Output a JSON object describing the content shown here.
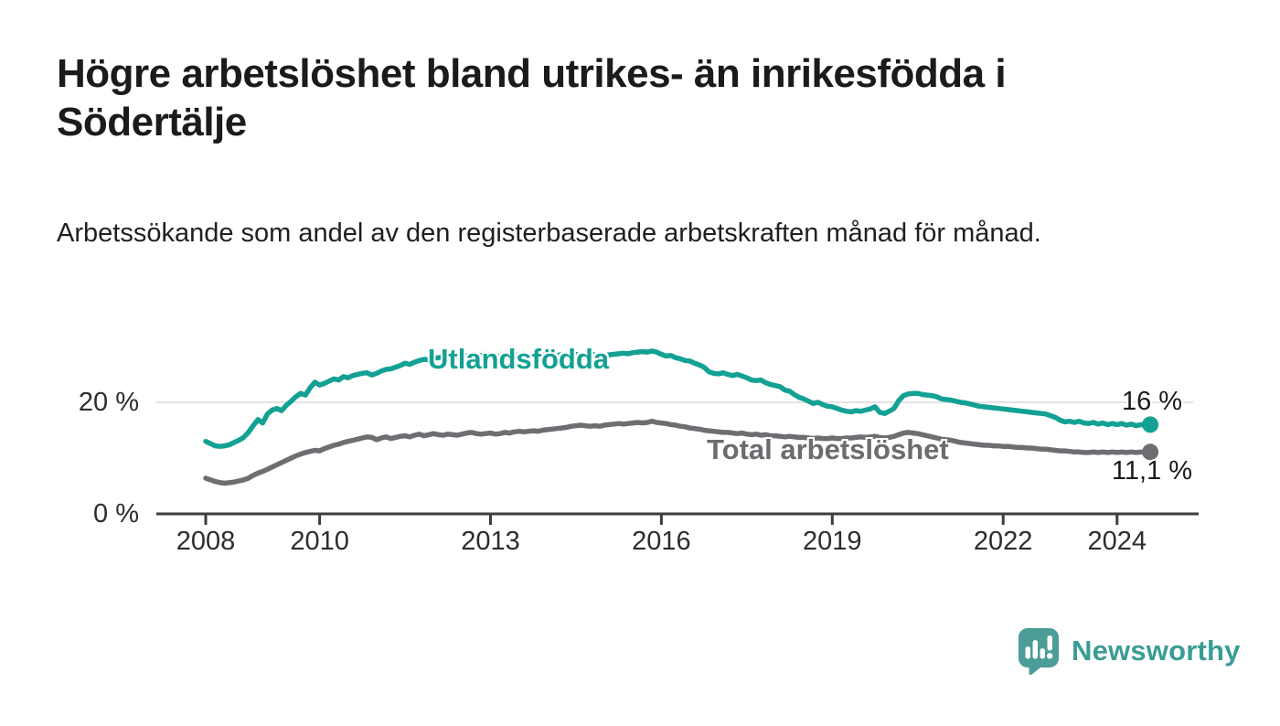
{
  "title": "Högre arbetslöshet bland utrikes- än inrikesfödda i Södertälje",
  "subtitle": "Arbetssökande som andel av den registerbaserade arbetskraften månad för månad.",
  "colors": {
    "series_teal": "#13A193",
    "series_gray": "#6E6E72",
    "gridline": "#E3E3E3",
    "axis": "#3E3E3E",
    "logo_icon": "#4C9D97",
    "logo_text": "#3A9C95"
  },
  "logo": {
    "text": "Newsworthy",
    "icon": "speech-bubble-bar-chart-icon"
  },
  "chart_data": {
    "type": "line",
    "title": "Högre arbetslöshet bland utrikes- än inrikesfödda i Södertälje",
    "subtitle": "Arbetssökande som andel av den registerbaserade arbetskraften månad för månad.",
    "x_unit": "month",
    "x_start": "2008-01",
    "x_end": "2024-08",
    "x_tick_years": [
      2008,
      2010,
      2013,
      2016,
      2019,
      2022,
      2024
    ],
    "x_tick_labels": [
      "2008",
      "2010",
      "2013",
      "2016",
      "2019",
      "2022",
      "2024"
    ],
    "y_tick_labels": {
      "top": "20 %",
      "bottom": "0 %"
    },
    "ylim": [
      0,
      32
    ],
    "gridline_at": 20,
    "grid": "single horizontal gridline at 20%",
    "legend_position": "inline labels on lines",
    "series": [
      {
        "name": "Utlandsfödda",
        "color": "#13A193",
        "end_label": "16 %",
        "end_value": 16.0,
        "values": [
          13.0,
          12.6,
          12.2,
          12.1,
          12.2,
          12.4,
          12.8,
          13.2,
          13.7,
          14.6,
          15.8,
          16.9,
          16.3,
          17.9,
          18.6,
          18.9,
          18.5,
          19.5,
          20.2,
          21.0,
          21.6,
          21.3,
          22.6,
          23.6,
          23.1,
          23.4,
          23.8,
          24.2,
          24.0,
          24.6,
          24.4,
          24.8,
          25.0,
          25.2,
          25.3,
          24.9,
          25.2,
          25.6,
          25.9,
          26.0,
          26.3,
          26.6,
          27.0,
          26.8,
          27.2,
          27.5,
          27.7,
          27.6,
          27.9,
          28.0,
          28.1,
          28.0,
          28.2,
          28.3,
          28.2,
          28.4,
          28.3,
          28.5,
          28.4,
          28.6,
          28.2,
          28.0,
          28.3,
          28.1,
          28.4,
          28.2,
          28.5,
          28.3,
          28.1,
          28.4,
          28.2,
          28.5,
          28.3,
          28.5,
          28.4,
          28.6,
          28.4,
          28.5,
          28.6,
          28.4,
          28.5,
          28.6,
          28.5,
          28.4,
          28.4,
          28.5,
          28.6,
          28.7,
          28.8,
          28.7,
          28.9,
          29.0,
          29.1,
          29.0,
          29.2,
          29.0,
          28.6,
          28.3,
          28.4,
          28.0,
          27.8,
          27.5,
          27.4,
          27.0,
          26.7,
          26.3,
          25.5,
          25.2,
          25.1,
          25.3,
          25.0,
          24.8,
          25.0,
          24.7,
          24.4,
          24.0,
          23.9,
          24.0,
          23.5,
          23.2,
          23.0,
          22.8,
          22.2,
          22.0,
          21.4,
          20.9,
          20.6,
          20.2,
          19.8,
          20.0,
          19.6,
          19.3,
          19.2,
          18.9,
          18.6,
          18.4,
          18.3,
          18.5,
          18.4,
          18.6,
          18.8,
          19.2,
          18.2,
          18.0,
          18.4,
          18.9,
          20.3,
          21.2,
          21.5,
          21.6,
          21.6,
          21.4,
          21.3,
          21.2,
          21.0,
          20.6,
          20.5,
          20.4,
          20.2,
          20.0,
          19.9,
          19.7,
          19.5,
          19.3,
          19.2,
          19.1,
          19.0,
          18.9,
          18.8,
          18.7,
          18.6,
          18.5,
          18.4,
          18.3,
          18.2,
          18.1,
          18.0,
          17.9,
          17.6,
          17.3,
          16.8,
          16.5,
          16.6,
          16.4,
          16.6,
          16.3,
          16.2,
          16.4,
          16.1,
          16.3,
          16.0,
          16.2,
          16.0,
          16.2,
          15.9,
          16.1,
          15.8,
          16.0,
          15.9,
          16.0
        ]
      },
      {
        "name": "Total arbetslöshet",
        "color": "#6E6E72",
        "end_label": "11,1 %",
        "end_value": 11.1,
        "values": [
          6.4,
          6.1,
          5.8,
          5.6,
          5.5,
          5.6,
          5.7,
          5.9,
          6.1,
          6.4,
          6.9,
          7.3,
          7.6,
          8.0,
          8.4,
          8.8,
          9.2,
          9.6,
          10.0,
          10.4,
          10.7,
          11.0,
          11.2,
          11.4,
          11.3,
          11.7,
          12.0,
          12.3,
          12.5,
          12.8,
          13.0,
          13.2,
          13.4,
          13.6,
          13.8,
          13.7,
          13.3,
          13.6,
          13.8,
          13.5,
          13.7,
          13.9,
          14.0,
          13.8,
          14.1,
          14.3,
          14.0,
          14.2,
          14.4,
          14.2,
          14.1,
          14.3,
          14.2,
          14.1,
          14.3,
          14.5,
          14.6,
          14.4,
          14.3,
          14.4,
          14.5,
          14.3,
          14.4,
          14.6,
          14.5,
          14.7,
          14.8,
          14.7,
          14.8,
          14.9,
          14.8,
          15.0,
          15.1,
          15.2,
          15.3,
          15.4,
          15.5,
          15.7,
          15.8,
          15.9,
          15.8,
          15.7,
          15.8,
          15.7,
          15.9,
          16.0,
          16.1,
          16.2,
          16.1,
          16.2,
          16.3,
          16.4,
          16.3,
          16.4,
          16.6,
          16.4,
          16.3,
          16.2,
          16.0,
          15.9,
          15.7,
          15.6,
          15.4,
          15.3,
          15.2,
          15.0,
          14.9,
          14.8,
          14.7,
          14.6,
          14.6,
          14.5,
          14.4,
          14.5,
          14.3,
          14.2,
          14.3,
          14.1,
          14.2,
          14.0,
          14.0,
          13.9,
          13.8,
          13.9,
          13.8,
          13.7,
          13.7,
          13.6,
          13.5,
          13.6,
          13.5,
          13.5,
          13.6,
          13.5,
          13.5,
          13.6,
          13.6,
          13.7,
          13.8,
          13.7,
          13.8,
          13.9,
          13.7,
          13.6,
          13.7,
          13.9,
          14.2,
          14.5,
          14.6,
          14.5,
          14.4,
          14.2,
          14.0,
          13.8,
          13.6,
          13.4,
          13.3,
          13.2,
          13.0,
          12.8,
          12.7,
          12.6,
          12.5,
          12.4,
          12.3,
          12.3,
          12.2,
          12.2,
          12.1,
          12.1,
          12.0,
          11.9,
          11.9,
          11.8,
          11.8,
          11.7,
          11.6,
          11.6,
          11.5,
          11.4,
          11.3,
          11.3,
          11.2,
          11.1,
          11.1,
          11.0,
          11.0,
          11.1,
          11.0,
          11.1,
          11.0,
          11.1,
          11.0,
          11.1,
          11.0,
          11.1,
          11.0,
          11.1,
          11.0,
          11.1
        ]
      }
    ]
  }
}
